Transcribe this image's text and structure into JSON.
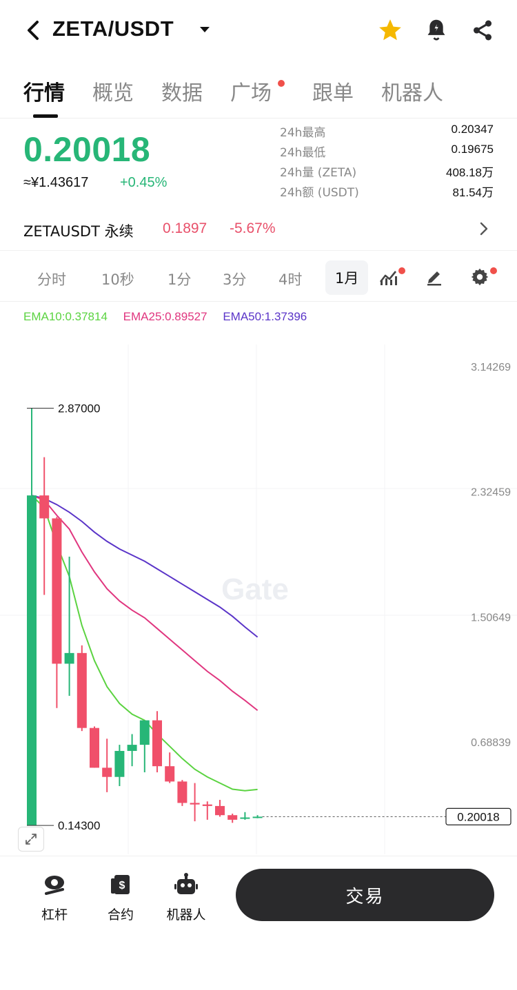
{
  "header": {
    "pair": "ZETA/USDT",
    "icons": [
      "back-icon",
      "chevron-down-icon",
      "star-icon",
      "bell-icon",
      "share-icon"
    ]
  },
  "tabs": [
    {
      "label": "行情",
      "active": true
    },
    {
      "label": "概览"
    },
    {
      "label": "数据"
    },
    {
      "label": "广场",
      "badge": true
    },
    {
      "label": "跟单"
    },
    {
      "label": "机器人"
    }
  ],
  "price": {
    "last": "0.20018",
    "cny": "≈¥1.43617",
    "change": "+0.45%"
  },
  "stats": [
    {
      "label": "24h最高",
      "value": "0.20347"
    },
    {
      "label": "24h最低",
      "value": "0.19675"
    },
    {
      "label": "24h量 (ZETA)",
      "value": "408.18万"
    },
    {
      "label": "24h额 (USDT)",
      "value": "81.54万"
    }
  ],
  "perp": {
    "name": "ZETAUSDT 永续",
    "price": "0.1897",
    "change": "-5.67%"
  },
  "intervals": [
    {
      "label": "分时"
    },
    {
      "label": "10秒"
    },
    {
      "label": "1分"
    },
    {
      "label": "3分"
    },
    {
      "label": "4时"
    },
    {
      "label": "1月",
      "active": true
    }
  ],
  "ema": {
    "ema10": "EMA10:0.37814",
    "ema25": "EMA25:0.89527",
    "ema50": "EMA50:1.37396"
  },
  "colors": {
    "up": "#27b677",
    "down": "#f0506a",
    "ema10": "#5bd341",
    "ema25": "#e0367f",
    "ema50": "#5a34c8"
  },
  "chart_data": {
    "type": "candlestick",
    "watermark": "Gate",
    "y_ticks": [
      "3.14269",
      "2.32459",
      "1.50649",
      "0.68839"
    ],
    "ylim": [
      0.0,
      3.3
    ],
    "high_marker": "2.87000",
    "low_marker": "0.14300",
    "last_price_tag": "0.20018",
    "candles": [
      {
        "o": 0.143,
        "h": 2.87,
        "l": 0.143,
        "c": 2.3
      },
      {
        "o": 2.3,
        "h": 2.55,
        "l": 1.65,
        "c": 2.15
      },
      {
        "o": 2.15,
        "h": 2.16,
        "l": 0.91,
        "c": 1.2
      },
      {
        "o": 1.2,
        "h": 1.9,
        "l": 0.99,
        "c": 1.27
      },
      {
        "o": 1.27,
        "h": 1.32,
        "l": 0.76,
        "c": 0.78
      },
      {
        "o": 0.78,
        "h": 0.79,
        "l": 0.52,
        "c": 0.52
      },
      {
        "o": 0.52,
        "h": 0.71,
        "l": 0.36,
        "c": 0.46
      },
      {
        "o": 0.46,
        "h": 0.67,
        "l": 0.4,
        "c": 0.63
      },
      {
        "o": 0.63,
        "h": 0.74,
        "l": 0.53,
        "c": 0.67
      },
      {
        "o": 0.67,
        "h": 0.82,
        "l": 0.49,
        "c": 0.83
      },
      {
        "o": 0.83,
        "h": 0.89,
        "l": 0.49,
        "c": 0.53
      },
      {
        "o": 0.53,
        "h": 0.62,
        "l": 0.42,
        "c": 0.43
      },
      {
        "o": 0.43,
        "h": 0.44,
        "l": 0.27,
        "c": 0.29
      },
      {
        "o": 0.29,
        "h": 0.42,
        "l": 0.17,
        "c": 0.28
      },
      {
        "o": 0.28,
        "h": 0.3,
        "l": 0.18,
        "c": 0.27
      },
      {
        "o": 0.27,
        "h": 0.31,
        "l": 0.2,
        "c": 0.21
      },
      {
        "o": 0.21,
        "h": 0.22,
        "l": 0.16,
        "c": 0.18
      },
      {
        "o": 0.19,
        "h": 0.23,
        "l": 0.18,
        "c": 0.195
      },
      {
        "o": 0.197,
        "h": 0.21,
        "l": 0.19,
        "c": 0.20018
      }
    ],
    "ema10_values": [
      2.3,
      2.22,
      1.98,
      1.77,
      1.45,
      1.22,
      1.05,
      0.94,
      0.87,
      0.83,
      0.74,
      0.66,
      0.58,
      0.51,
      0.46,
      0.42,
      0.38,
      0.37,
      0.378
    ],
    "ema25_values": [
      2.3,
      2.27,
      2.17,
      2.08,
      1.93,
      1.8,
      1.69,
      1.61,
      1.55,
      1.5,
      1.43,
      1.36,
      1.29,
      1.22,
      1.15,
      1.09,
      1.02,
      0.96,
      0.895
    ],
    "ema50_values": [
      2.3,
      2.28,
      2.24,
      2.19,
      2.13,
      2.06,
      2.0,
      1.95,
      1.91,
      1.87,
      1.82,
      1.77,
      1.72,
      1.67,
      1.62,
      1.57,
      1.51,
      1.44,
      1.374
    ]
  },
  "bottom": {
    "items": [
      {
        "label": "杠杆",
        "icon": "leverage-icon"
      },
      {
        "label": "合约",
        "icon": "contract-icon"
      },
      {
        "label": "机器人",
        "icon": "robot-icon"
      }
    ],
    "trade_label": "交易"
  }
}
